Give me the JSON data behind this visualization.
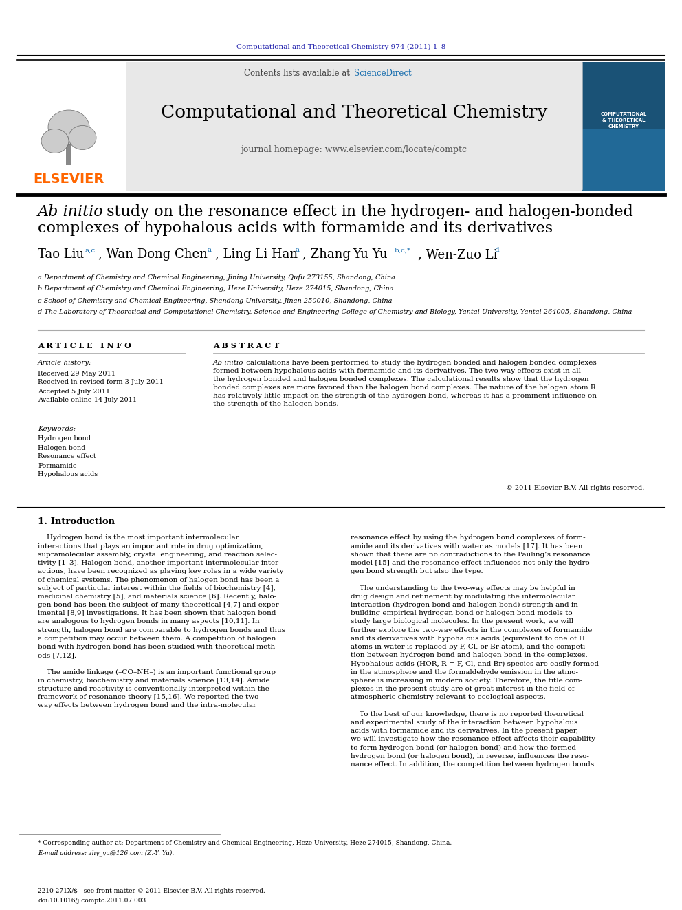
{
  "page_bg": "#ffffff",
  "top_journal_text": "Computational and Theoretical Chemistry 974 (2011) 1–8",
  "top_journal_color": "#1a1aaa",
  "header_bg": "#e8e8e8",
  "journal_title": "Computational and Theoretical Chemistry",
  "contents_text": "Contents lists available at ",
  "sciencedirect_text": "ScienceDirect",
  "sciencedirect_color": "#1a6faf",
  "journal_homepage": "journal homepage: www.elsevier.com/locate/comptc",
  "elsevier_color": "#FF6600",
  "affil_a": "a Department of Chemistry and Chemical Engineering, Jining University, Qufu 273155, Shandong, China",
  "affil_b": "b Department of Chemistry and Chemical Engineering, Heze University, Heze 274015, Shandong, China",
  "affil_c": "c School of Chemistry and Chemical Engineering, Shandong University, Jinan 250010, Shandong, China",
  "affil_d": "d The Laboratory of Theoretical and Computational Chemistry, Science and Engineering College of Chemistry and Biology, Yantai University, Yantai 264005, Shandong, China",
  "article_info_header": "A R T I C L E   I N F O",
  "article_history_label": "Article history:",
  "received": "Received 29 May 2011",
  "revised": "Received in revised form 3 July 2011",
  "accepted": "Accepted 5 July 2011",
  "online": "Available online 14 July 2011",
  "keywords_label": "Keywords:",
  "keyword1": "Hydrogen bond",
  "keyword2": "Halogen bond",
  "keyword3": "Resonance effect",
  "keyword4": "Formamide",
  "keyword5": "Hypohalous acids",
  "abstract_header": "A B S T R A C T",
  "copyright": "© 2011 Elsevier B.V. All rights reserved.",
  "intro_header": "1. Introduction",
  "footnote_corresponding": "* Corresponding author at: Department of Chemistry and Chemical Engineering, Heze University, Heze 274015, Shandong, China.",
  "footnote_email": "E-mail address: zhy_yu@126.com (Z.-Y. Yu).",
  "footer_issn": "2210-271X/$ - see front matter © 2011 Elsevier B.V. All rights reserved.",
  "footer_doi": "doi:10.1016/j.comptc.2011.07.003"
}
